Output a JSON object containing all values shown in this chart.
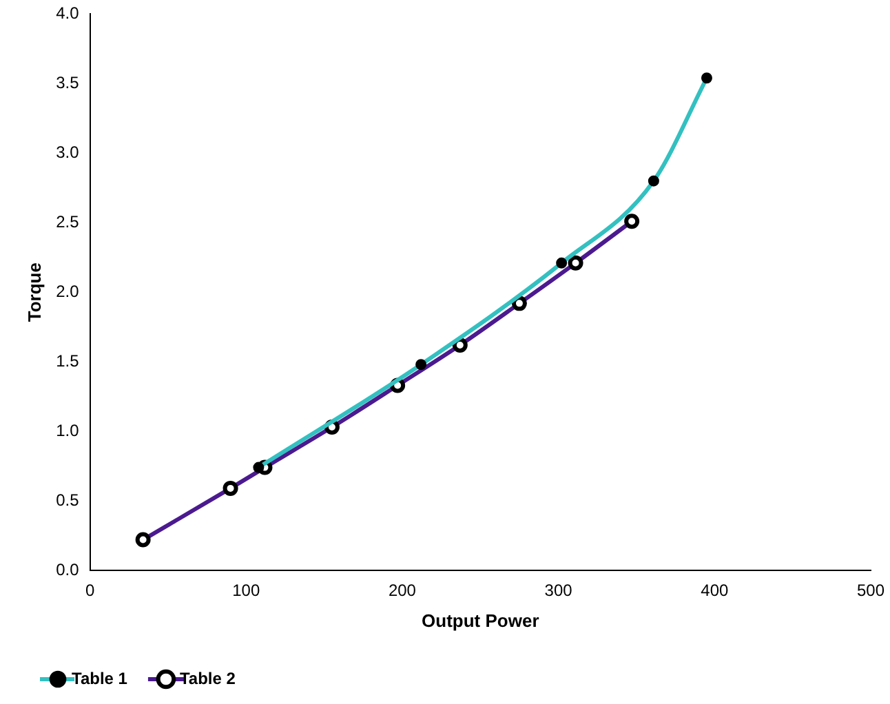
{
  "chart_data": {
    "type": "line",
    "xlabel": "Output Power",
    "ylabel": "Torque",
    "xlim": [
      0,
      500
    ],
    "xticks": [
      0,
      100,
      200,
      300,
      400,
      500
    ],
    "ylim": [
      0,
      4
    ],
    "yticks": [
      {
        "value": 0,
        "label": "0.0"
      },
      {
        "value": 0.5,
        "label": "0.5"
      },
      {
        "value": 1,
        "label": "1.0"
      },
      {
        "value": 1.5,
        "label": "1.5"
      },
      {
        "value": 2,
        "label": "2.0"
      },
      {
        "value": 2.5,
        "label": "2.5"
      },
      {
        "value": 3,
        "label": "3.0"
      },
      {
        "value": 3.5,
        "label": "3.5"
      },
      {
        "value": 4,
        "label": "4.0"
      }
    ],
    "grid": false,
    "legend": "bottom left",
    "marker": "circle",
    "series": [
      {
        "name": "Table 1",
        "color": "#33c0c0",
        "x": [
          108,
          212,
          302,
          361,
          395
        ],
        "values": [
          0.74,
          1.48,
          2.21,
          2.8,
          3.54
        ]
      },
      {
        "name": "Table 2",
        "color": "#4b1a8f",
        "x": [
          34,
          90,
          112,
          155,
          197,
          237,
          275,
          311,
          347
        ],
        "values": [
          0.22,
          0.59,
          0.74,
          1.03,
          1.33,
          1.62,
          1.92,
          2.21,
          2.51
        ]
      }
    ]
  }
}
